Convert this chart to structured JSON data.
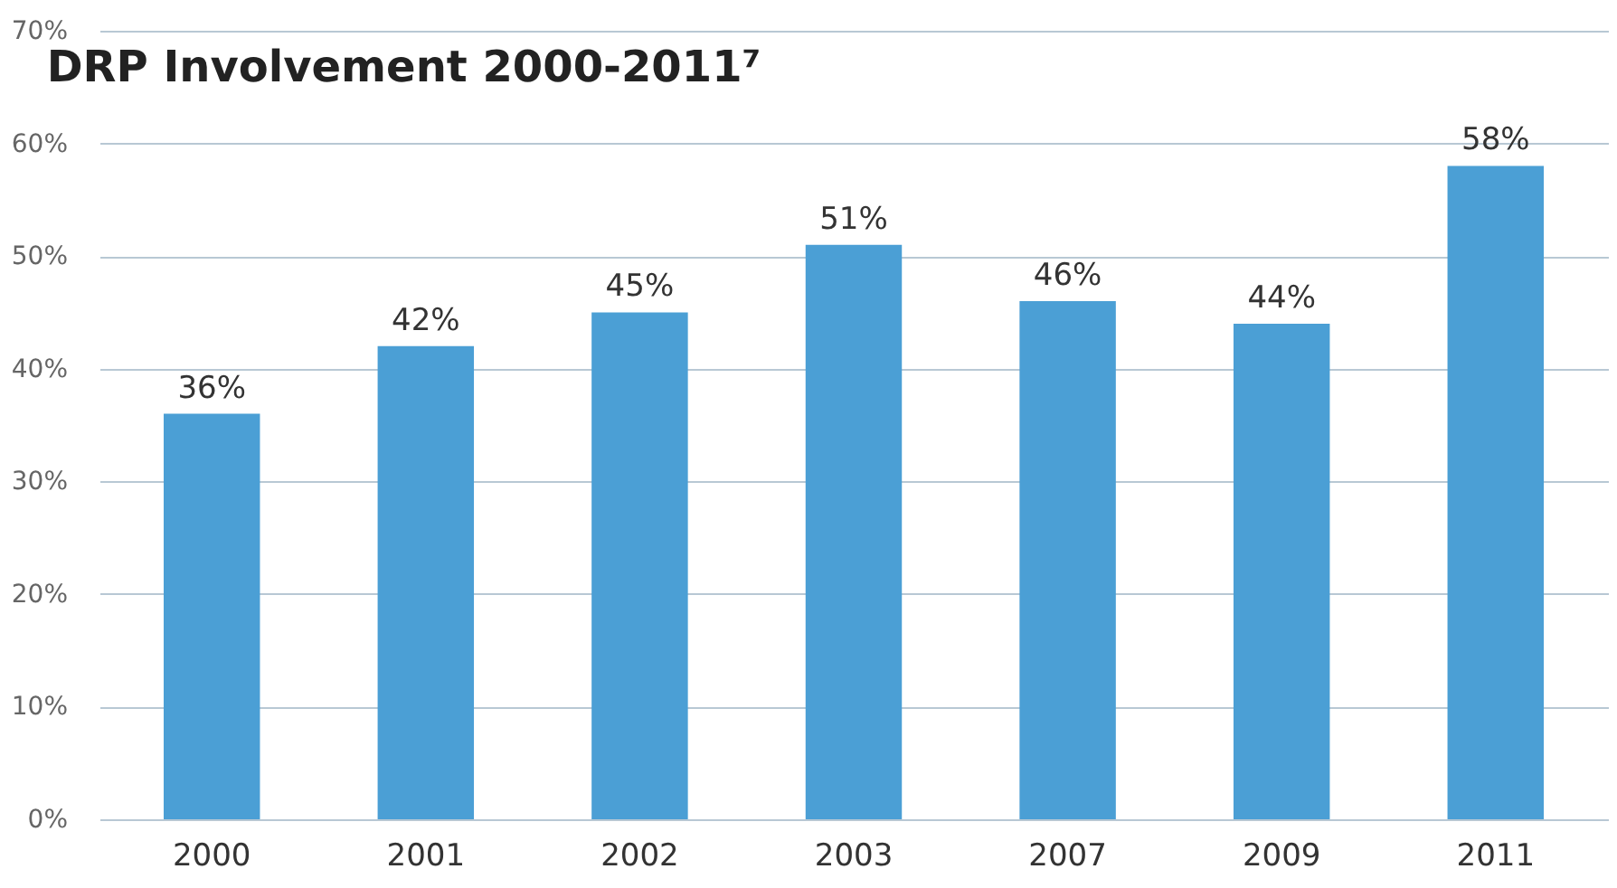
{
  "chart_data": {
    "type": "bar",
    "title": "DRP Involvement  2000-2011⁷",
    "categories": [
      "2000",
      "2001",
      "2002",
      "2003",
      "2007",
      "2009",
      "2011"
    ],
    "values": [
      36,
      42,
      45,
      51,
      46,
      44,
      58
    ],
    "value_labels": [
      "36%",
      "42%",
      "45%",
      "51%",
      "46%",
      "44%",
      "58%"
    ],
    "color": "#4b9fd5",
    "ylim": [
      0,
      70
    ],
    "yticks": [
      {
        "value": 0,
        "label": "0%"
      },
      {
        "value": 10,
        "label": "10%"
      },
      {
        "value": 20,
        "label": "20%"
      },
      {
        "value": 30,
        "label": "30%"
      },
      {
        "value": 40,
        "label": "40%"
      },
      {
        "value": 50,
        "label": "50%"
      },
      {
        "value": 60,
        "label": "60%"
      },
      {
        "value": 70,
        "label": "70%"
      }
    ],
    "grid": "y"
  }
}
